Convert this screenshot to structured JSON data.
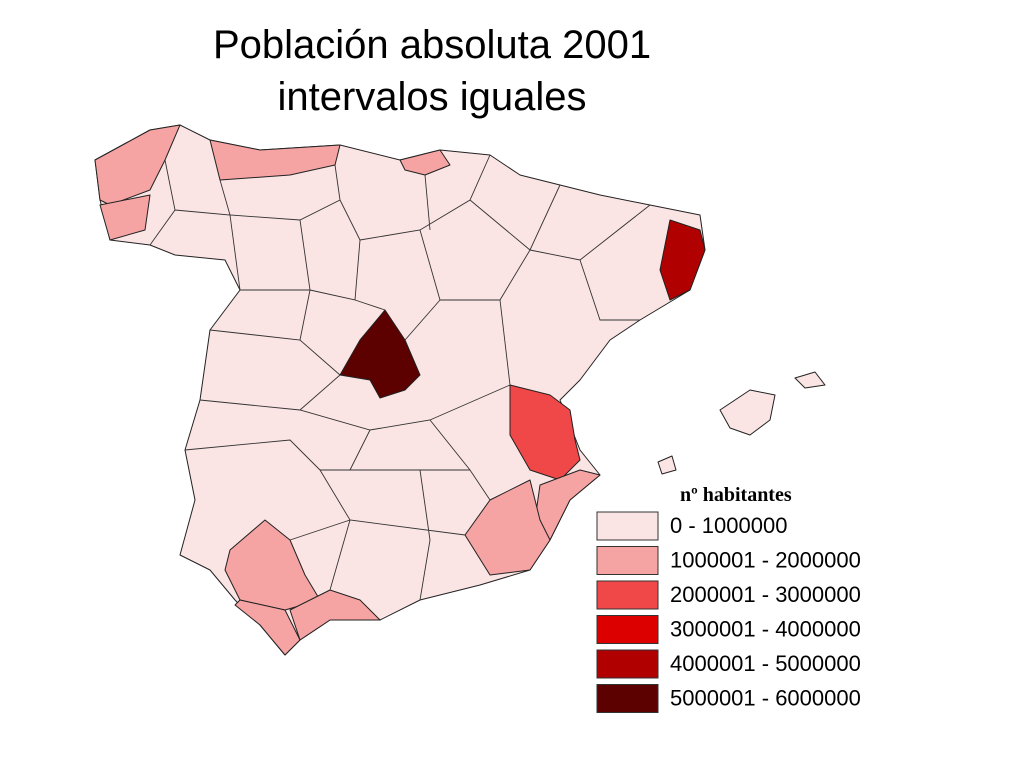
{
  "title": [
    "Población absoluta 2001",
    "intervalos iguales"
  ],
  "legend": {
    "title": "nº habitantes",
    "items": [
      {
        "label": "0 - 1000000",
        "color": "#fbe4e4"
      },
      {
        "label": "1000001 - 2000000",
        "color": "#f5a3a3"
      },
      {
        "label": "2000001 - 3000000",
        "color": "#f04848"
      },
      {
        "label": "3000001 - 4000000",
        "color": "#dd0000"
      },
      {
        "label": "4000001 - 5000000",
        "color": "#b00000"
      },
      {
        "label": "5000001 - 6000000",
        "color": "#5c0000"
      }
    ]
  }
}
